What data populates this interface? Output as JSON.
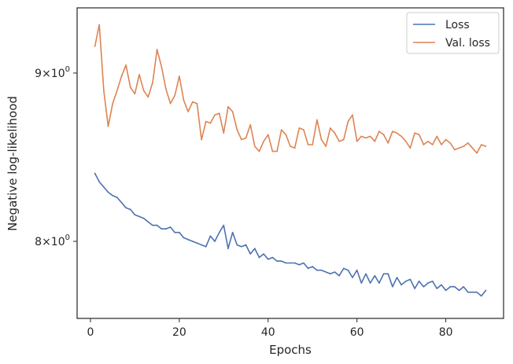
{
  "chart_data": {
    "type": "line",
    "title": "",
    "xlabel": "Epochs",
    "ylabel": "Negative log-likelihood",
    "xlim": [
      -3,
      93
    ],
    "ylim": [
      7.58,
      9.42
    ],
    "yscale": "log",
    "x_ticks": [
      0,
      20,
      40,
      60,
      80
    ],
    "x_tick_labels": [
      "0",
      "20",
      "40",
      "60",
      "80"
    ],
    "y_ticks": [
      8,
      9
    ],
    "y_tick_labels": [
      {
        "base": "8",
        "mult": "×",
        "ten": "10",
        "exp": "0"
      },
      {
        "base": "9",
        "mult": "×",
        "ten": "10",
        "exp": "0"
      }
    ],
    "grid": false,
    "legend_position": "top-right",
    "series": [
      {
        "name": "Loss",
        "color": "#4c72b0",
        "x": [
          1,
          2,
          3,
          4,
          5,
          6,
          7,
          8,
          9,
          10,
          11,
          12,
          13,
          14,
          15,
          16,
          17,
          18,
          19,
          20,
          21,
          22,
          23,
          24,
          25,
          26,
          27,
          28,
          29,
          30,
          31,
          32,
          33,
          34,
          35,
          36,
          37,
          38,
          39,
          40,
          41,
          42,
          43,
          44,
          45,
          46,
          47,
          48,
          49,
          50,
          51,
          52,
          53,
          54,
          55,
          56,
          57,
          58,
          59,
          60,
          61,
          62,
          63,
          64,
          65,
          66,
          67,
          68,
          69,
          70,
          71,
          72,
          73,
          74,
          75,
          76,
          77,
          78,
          79,
          80,
          81,
          82,
          83,
          84,
          85,
          86,
          87,
          88,
          89
        ],
        "values": [
          8.39,
          8.34,
          8.31,
          8.28,
          8.26,
          8.25,
          8.22,
          8.19,
          8.18,
          8.15,
          8.14,
          8.13,
          8.11,
          8.09,
          8.09,
          8.07,
          8.07,
          8.08,
          8.05,
          8.05,
          8.02,
          8.01,
          8.0,
          7.99,
          7.98,
          7.97,
          8.03,
          8.0,
          8.05,
          8.09,
          7.96,
          8.05,
          7.98,
          7.97,
          7.98,
          7.93,
          7.96,
          7.91,
          7.93,
          7.9,
          7.91,
          7.89,
          7.89,
          7.88,
          7.88,
          7.88,
          7.87,
          7.88,
          7.85,
          7.86,
          7.84,
          7.84,
          7.83,
          7.82,
          7.83,
          7.81,
          7.85,
          7.84,
          7.8,
          7.84,
          7.77,
          7.82,
          7.77,
          7.81,
          7.77,
          7.82,
          7.82,
          7.75,
          7.8,
          7.76,
          7.78,
          7.79,
          7.74,
          7.78,
          7.75,
          7.77,
          7.78,
          7.74,
          7.76,
          7.73,
          7.75,
          7.75,
          7.73,
          7.75,
          7.72,
          7.72,
          7.72,
          7.7,
          7.73
        ]
      },
      {
        "name": "Val. loss",
        "color": "#dd8452",
        "x": [
          1,
          2,
          3,
          4,
          5,
          6,
          7,
          8,
          9,
          10,
          11,
          12,
          13,
          14,
          15,
          16,
          17,
          18,
          19,
          20,
          21,
          22,
          23,
          24,
          25,
          26,
          27,
          28,
          29,
          30,
          31,
          32,
          33,
          34,
          35,
          36,
          37,
          38,
          39,
          40,
          41,
          42,
          43,
          44,
          45,
          46,
          47,
          48,
          49,
          50,
          51,
          52,
          53,
          54,
          55,
          56,
          57,
          58,
          59,
          60,
          61,
          62,
          63,
          64,
          65,
          66,
          67,
          68,
          69,
          70,
          71,
          72,
          73,
          74,
          75,
          76,
          77,
          78,
          79,
          80,
          81,
          82,
          83,
          84,
          85,
          86,
          87,
          88,
          89
        ],
        "values": [
          9.17,
          9.31,
          8.89,
          8.67,
          8.81,
          8.89,
          8.98,
          9.05,
          8.91,
          8.87,
          8.99,
          8.89,
          8.85,
          8.94,
          9.15,
          9.04,
          8.9,
          8.81,
          8.86,
          8.98,
          8.83,
          8.76,
          8.82,
          8.81,
          8.59,
          8.7,
          8.69,
          8.74,
          8.75,
          8.63,
          8.79,
          8.76,
          8.65,
          8.59,
          8.6,
          8.68,
          8.55,
          8.52,
          8.58,
          8.62,
          8.52,
          8.52,
          8.65,
          8.62,
          8.55,
          8.54,
          8.66,
          8.65,
          8.56,
          8.56,
          8.71,
          8.59,
          8.55,
          8.66,
          8.63,
          8.58,
          8.59,
          8.7,
          8.74,
          8.58,
          8.61,
          8.6,
          8.61,
          8.58,
          8.64,
          8.62,
          8.57,
          8.64,
          8.63,
          8.61,
          8.58,
          8.54,
          8.63,
          8.62,
          8.56,
          8.58,
          8.56,
          8.61,
          8.56,
          8.59,
          8.57,
          8.53,
          8.54,
          8.55,
          8.57,
          8.54,
          8.51,
          8.56,
          8.55
        ]
      }
    ]
  }
}
